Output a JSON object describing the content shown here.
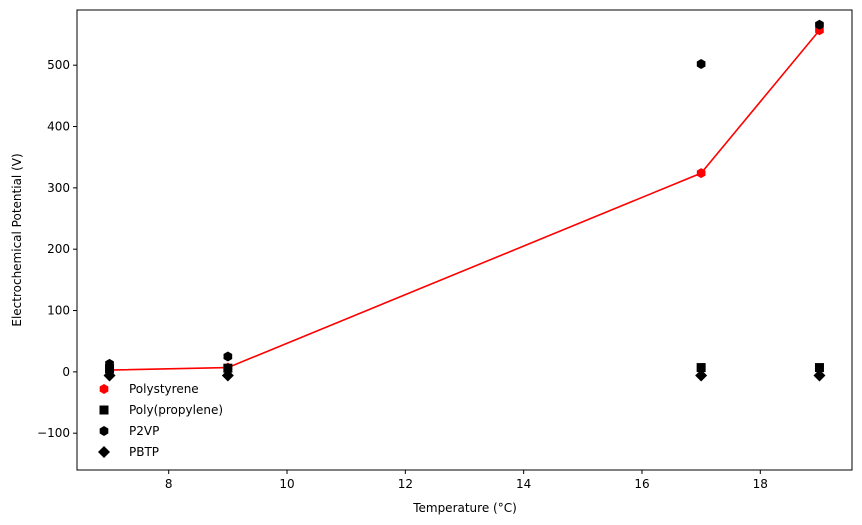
{
  "chart_data": {
    "type": "scatter",
    "title": "",
    "xlabel": "Temperature (°C)",
    "ylabel": "Electrochemical Potential (V)",
    "xlim": [
      6.45,
      19.55
    ],
    "ylim": [
      -160,
      590
    ],
    "xticks": [
      8,
      10,
      12,
      14,
      16,
      18
    ],
    "yticks": [
      -100,
      0,
      100,
      200,
      300,
      400,
      500
    ],
    "ytick_labels": [
      "−100",
      "0",
      "100",
      "200",
      "300",
      "400",
      "500"
    ],
    "grid": false,
    "legend_position": "lower-left",
    "x": [
      7,
      9,
      17,
      19
    ],
    "series": [
      {
        "name": "Polystyrene",
        "values": [
          3,
          7,
          324,
          557
        ],
        "color": "#ff0000",
        "marker": "hexagon",
        "line": true
      },
      {
        "name": "Poly(propylene)",
        "values": [
          5,
          6,
          7,
          7
        ],
        "color": "#000000",
        "marker": "square",
        "line": false
      },
      {
        "name": "P2VP",
        "values": [
          13,
          25,
          502,
          566
        ],
        "color": "#000000",
        "marker": "hexagon",
        "line": false
      },
      {
        "name": "PBTP",
        "values": [
          -6,
          -6,
          -6,
          -6
        ],
        "color": "#000000",
        "marker": "diamond",
        "line": false
      }
    ]
  }
}
